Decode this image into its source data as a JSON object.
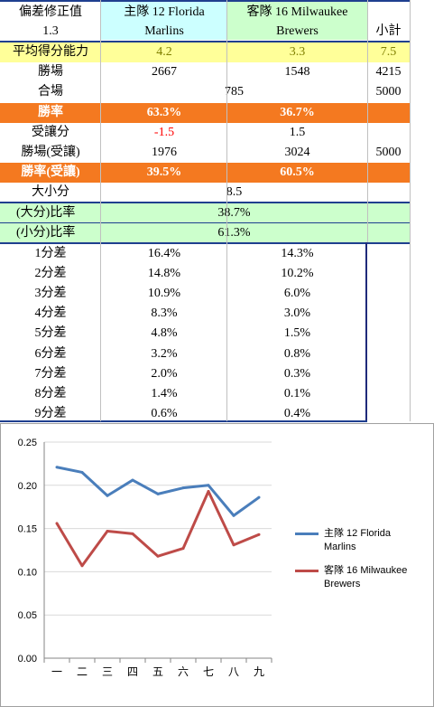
{
  "header": {
    "title_line1": "偏差修正值",
    "title_line2": "1.3",
    "home_label_line1": "主隊   12 Florida",
    "home_label_line2": "Marlins",
    "away_label_line1": "客隊   16 Milwaukee",
    "away_label_line2": "Brewers",
    "subtotal_label": "小計"
  },
  "avg_score": {
    "label": "平均得分能力",
    "home": "4.2",
    "away": "3.3",
    "total": "7.5"
  },
  "wins": {
    "label": "勝場",
    "home": "2667",
    "away": "1548",
    "total": "4215"
  },
  "draws": {
    "label": "合場",
    "value": "785",
    "total": "5000"
  },
  "win_rate": {
    "label": "勝率",
    "home": "63.3%",
    "away": "36.7%"
  },
  "handicap": {
    "label": "受讓分",
    "home": "-1.5",
    "away": "1.5"
  },
  "handicap_wins": {
    "label": "勝場(受讓)",
    "home": "1976",
    "away": "3024",
    "total": "5000"
  },
  "handicap_rate": {
    "label": "勝率(受讓)",
    "home": "39.5%",
    "away": "60.5%"
  },
  "over_under": {
    "label": "大小分",
    "value": "8.5"
  },
  "over_rate": {
    "label": "(大分)比率",
    "value": "38.7%"
  },
  "under_rate": {
    "label": "(小分)比率",
    "value": "61.3%"
  },
  "margins": [
    {
      "label": "1分差",
      "home": "16.4%",
      "away": "14.3%"
    },
    {
      "label": "2分差",
      "home": "14.8%",
      "away": "10.2%"
    },
    {
      "label": "3分差",
      "home": "10.9%",
      "away": "6.0%"
    },
    {
      "label": "4分差",
      "home": "8.3%",
      "away": "3.0%"
    },
    {
      "label": "5分差",
      "home": "4.8%",
      "away": "1.5%"
    },
    {
      "label": "6分差",
      "home": "3.2%",
      "away": "0.8%"
    },
    {
      "label": "7分差",
      "home": "2.0%",
      "away": "0.3%"
    },
    {
      "label": "8分差",
      "home": "1.4%",
      "away": "0.1%"
    },
    {
      "label": "9分差",
      "home": "0.6%",
      "away": "0.4%"
    }
  ],
  "colors": {
    "home_series": "#4a7ebb",
    "away_series": "#be4b48",
    "orange_band": "#f47920",
    "yellow_band": "#ffff99",
    "green_band": "#ccffcc",
    "cyan_band": "#ccffff"
  },
  "chart_data": {
    "type": "line",
    "title": "",
    "xlabel": "",
    "ylabel": "",
    "categories": [
      "一",
      "二",
      "三",
      "四",
      "五",
      "六",
      "七",
      "八",
      "九"
    ],
    "ylim": [
      0,
      0.25
    ],
    "yticks": [
      "0.00",
      "0.05",
      "0.10",
      "0.15",
      "0.20",
      "0.25"
    ],
    "grid": true,
    "legend": "right",
    "series": [
      {
        "name": "主隊   12 Florida Marlins",
        "legend_line1": "主隊   12 Florida",
        "legend_line2": "Marlins",
        "color": "#4a7ebb",
        "values": [
          0.221,
          0.215,
          0.188,
          0.206,
          0.19,
          0.197,
          0.2,
          0.165,
          0.186
        ]
      },
      {
        "name": "客隊   16 Milwaukee Brewers",
        "legend_line1": "客隊   16 Milwaukee",
        "legend_line2": "Brewers",
        "color": "#be4b48",
        "values": [
          0.156,
          0.107,
          0.147,
          0.144,
          0.118,
          0.127,
          0.193,
          0.131,
          0.143
        ]
      }
    ]
  }
}
